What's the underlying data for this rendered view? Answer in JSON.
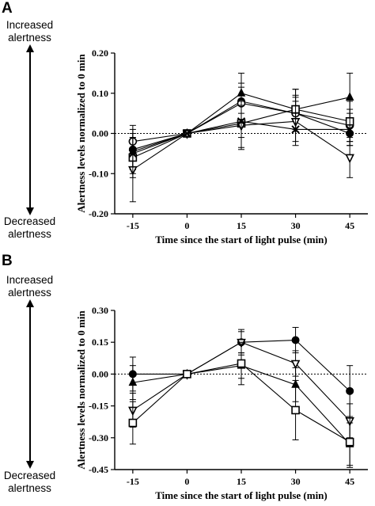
{
  "panels": [
    {
      "letter": "A",
      "increased_label_1": "Increased",
      "increased_label_2": "alertness",
      "decreased_label_1": "Decreased",
      "decreased_label_2": "alertness"
    },
    {
      "letter": "B",
      "increased_label_1": "Increased",
      "increased_label_2": "alertness",
      "decreased_label_1": "Decreased",
      "decreased_label_2": "alertness"
    }
  ],
  "chart_data": [
    {
      "type": "line",
      "title": "",
      "xlabel": "Time since the start of light pulse (min)",
      "ylabel": "Alertness levels normalized to 0 min",
      "x": [
        -15,
        0,
        15,
        30,
        45
      ],
      "x_tick_labels": [
        "-15",
        "0",
        "15",
        "30",
        "45"
      ],
      "ylim": [
        -0.2,
        0.2
      ],
      "y_ticks": [
        -0.2,
        -0.1,
        0.0,
        0.1,
        0.2
      ],
      "y_tick_labels": [
        "-0.20",
        "-0.10",
        "0.00",
        "0.10",
        "0.20"
      ],
      "reference_line": 0,
      "grid": false,
      "series": [
        {
          "marker": "filled-circle",
          "values": [
            -0.04,
            0.0,
            0.08,
            0.05,
            0.0
          ],
          "errors": [
            0.05,
            0,
            0.045,
            0.045,
            0.03
          ]
        },
        {
          "marker": "filled-triangle",
          "values": [
            -0.045,
            0.0,
            0.1,
            0.06,
            0.09
          ],
          "errors": [
            0.045,
            0,
            0.05,
            0.05,
            0.06
          ]
        },
        {
          "marker": "open-circle",
          "values": [
            -0.02,
            0.0,
            0.075,
            0.05,
            0.02
          ],
          "errors": [
            0.04,
            0,
            0.04,
            0.04,
            0.04
          ]
        },
        {
          "marker": "open-square",
          "values": [
            -0.06,
            0.0,
            0.025,
            0.06,
            0.03
          ],
          "errors": [
            0.05,
            0,
            0.06,
            0.05,
            0.05
          ]
        },
        {
          "marker": "open-triangle-down",
          "values": [
            -0.09,
            0.0,
            0.02,
            0.03,
            -0.06
          ],
          "errors": [
            0.08,
            0,
            0.06,
            0.05,
            0.05
          ]
        },
        {
          "marker": "cross",
          "values": [
            -0.05,
            0.0,
            0.03,
            0.01,
            0.01
          ],
          "errors": [
            0.05,
            0,
            0.04,
            0.04,
            0.04
          ]
        }
      ]
    },
    {
      "type": "line",
      "title": "",
      "xlabel": "Time since the start of light pulse (min)",
      "ylabel": "Alertness levels normalized to 0 min",
      "x": [
        -15,
        0,
        15,
        30,
        45
      ],
      "x_tick_labels": [
        "-15",
        "0",
        "15",
        "30",
        "45"
      ],
      "ylim": [
        -0.45,
        0.3
      ],
      "y_ticks": [
        -0.45,
        -0.3,
        -0.15,
        0.0,
        0.15,
        0.3
      ],
      "y_tick_labels": [
        "-0.45",
        "-0.30",
        "-0.15",
        "0.00",
        "0.15",
        "0.30"
      ],
      "reference_line": 0,
      "grid": false,
      "series": [
        {
          "marker": "filled-circle",
          "values": [
            0.0,
            0.0,
            0.15,
            0.16,
            -0.08
          ],
          "errors": [
            0.08,
            0,
            0.06,
            0.06,
            0.12
          ]
        },
        {
          "marker": "filled-triangle",
          "values": [
            -0.04,
            0.0,
            0.04,
            -0.05,
            -0.33
          ],
          "errors": [
            0.08,
            0,
            0.06,
            0.08,
            0.1
          ]
        },
        {
          "marker": "open-triangle-down",
          "values": [
            -0.17,
            0.0,
            0.15,
            0.05,
            -0.22
          ],
          "errors": [
            0.08,
            0,
            0.05,
            0.06,
            0.08
          ]
        },
        {
          "marker": "open-square",
          "values": [
            -0.23,
            0.0,
            0.05,
            -0.17,
            -0.32
          ],
          "errors": [
            0.1,
            0,
            0.1,
            0.14,
            0.12
          ]
        }
      ]
    }
  ]
}
